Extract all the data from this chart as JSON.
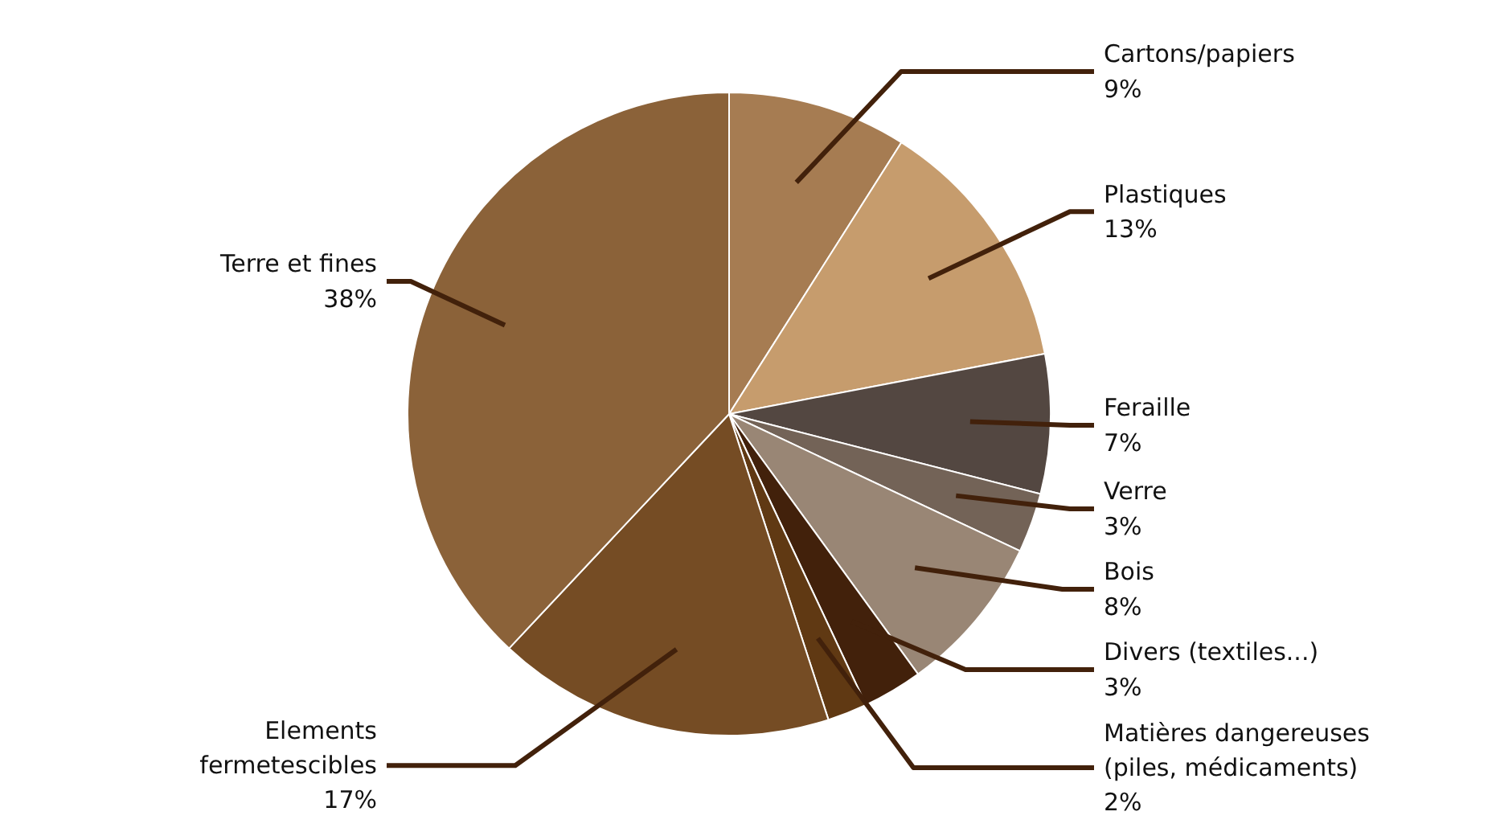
{
  "chart_data": {
    "type": "pie",
    "categories": [
      "Cartons/papiers",
      "Plastiques",
      "Feraille",
      "Verre",
      "Bois",
      "Divers (textiles...)",
      "Matières dangereuses (piles, médicaments)",
      "Elements fermetescibles",
      "Terre et fines"
    ],
    "values": [
      9,
      13,
      7,
      3,
      8,
      3,
      2,
      17,
      38
    ],
    "value_labels": [
      "9%",
      "13%",
      "7%",
      "3%",
      "8%",
      "3%",
      "2%",
      "17%",
      "38%"
    ],
    "colors": [
      "#a67c52",
      "#c69c6d",
      "#534741",
      "#736357",
      "#998675",
      "#42210b",
      "#603913",
      "#754c24",
      "#8b6239"
    ],
    "legend": false
  }
}
